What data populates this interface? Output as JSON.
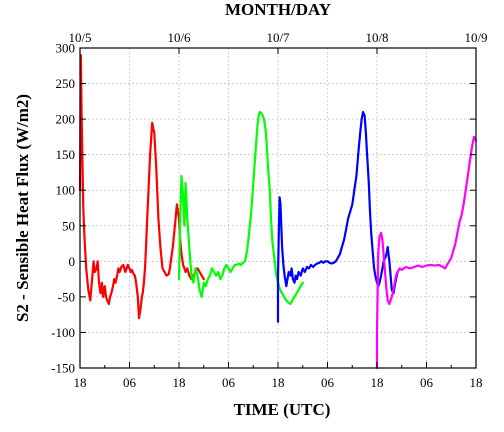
{
  "chart_data": {
    "type": "line",
    "title": "",
    "top_axis_title": "MONTH/DAY",
    "xlabel": "TIME (UTC)",
    "ylabel": "S2 - Sensible Heat Flux (W/m2)",
    "x_unit": "hours since 10/5 18 UTC",
    "xlim": [
      0,
      96
    ],
    "ylim": [
      -150,
      300
    ],
    "grid": true,
    "legend": "none",
    "bottom_ticks": [
      {
        "x": 0,
        "label": "18"
      },
      {
        "x": 12,
        "label": "06"
      },
      {
        "x": 24,
        "label": "18"
      },
      {
        "x": 36,
        "label": "06"
      },
      {
        "x": 48,
        "label": "18"
      },
      {
        "x": 60,
        "label": "06"
      },
      {
        "x": 72,
        "label": "18"
      },
      {
        "x": 84,
        "label": "06"
      },
      {
        "x": 96,
        "label": "18"
      }
    ],
    "top_ticks": [
      {
        "x": 0,
        "label": "10/5"
      },
      {
        "x": 24,
        "label": "10/6"
      },
      {
        "x": 48,
        "label": "10/7"
      },
      {
        "x": 72,
        "label": "10/8"
      },
      {
        "x": 96,
        "label": "10/9"
      }
    ],
    "y_ticks": [
      -150,
      -100,
      -50,
      0,
      50,
      100,
      150,
      200,
      250,
      300
    ],
    "series": [
      {
        "color": "#ff0000",
        "x": [
          0,
          0.2,
          0.4,
          0.6,
          0.8,
          1.0,
          1.2,
          1.5,
          2.0,
          2.5,
          3.0,
          3.3,
          3.6,
          4.0,
          4.3,
          4.6,
          5.0,
          5.3,
          5.6,
          6.0,
          6.3,
          6.6,
          7.0,
          7.3,
          7.6,
          8.0,
          8.3,
          8.6,
          9.0,
          9.3,
          9.6,
          10.0,
          10.5,
          11.0,
          11.3,
          11.6,
          12.0,
          12.3,
          12.6,
          13.0,
          13.3,
          13.6,
          14.0,
          14.3,
          14.6,
          15.0,
          15.2,
          15.5,
          15.8,
          16.0,
          16.3,
          16.6,
          17.0,
          17.5,
          18.0,
          18.5,
          19.0,
          19.5,
          20.0,
          20.5,
          21.0,
          21.5,
          21.8,
          22.0,
          22.5,
          23.0,
          23.5,
          24.0,
          24.3,
          24.6,
          25.0,
          25.3,
          25.6,
          26.0,
          26.5,
          27.0,
          27.5,
          28.0,
          28.5,
          29.0,
          29.5,
          30.0
        ],
        "y": [
          100,
          290,
          200,
          135,
          75,
          45,
          20,
          -10,
          -40,
          -55,
          -20,
          0,
          -15,
          -10,
          0,
          -30,
          -45,
          -30,
          -50,
          -35,
          -50,
          -55,
          -60,
          -50,
          -45,
          -35,
          -25,
          -30,
          -20,
          -10,
          -15,
          -8,
          -5,
          -15,
          -10,
          -5,
          -10,
          -15,
          -12,
          -18,
          -20,
          -30,
          -50,
          -80,
          -70,
          -50,
          -45,
          -30,
          -5,
          20,
          60,
          100,
          150,
          195,
          180,
          130,
          60,
          20,
          -10,
          -15,
          -20,
          -18,
          -10,
          0,
          20,
          50,
          80,
          60,
          30,
          10,
          -5,
          -10,
          -15,
          -10,
          -20,
          -25,
          -20,
          -15,
          -10,
          -15,
          -20,
          -25
        ]
      },
      {
        "color": "#00ff00",
        "x": [
          24.0,
          24.3,
          24.6,
          25.0,
          25.3,
          25.6,
          26.0,
          26.5,
          27.0,
          27.5,
          28.0,
          28.5,
          29.0,
          29.5,
          30.0,
          30.5,
          31.0,
          31.5,
          32.0,
          32.5,
          33.0,
          33.5,
          34.0,
          34.5,
          35.0,
          35.5,
          36.0,
          36.5,
          37.0,
          37.5,
          38.0,
          38.5,
          39.0,
          39.5,
          40.0,
          40.5,
          41.0,
          41.5,
          42.0,
          42.5,
          43.0,
          43.3,
          43.6,
          44.0,
          44.3,
          44.6,
          45.0,
          45.3,
          45.6,
          46.0,
          46.3,
          46.6,
          47.0,
          47.3,
          47.6,
          48.0,
          48.5,
          49.0,
          49.5,
          50.0,
          50.5,
          51.0,
          51.5,
          52.0,
          52.5,
          53.0,
          53.5,
          54.0
        ],
        "y": [
          -25,
          60,
          120,
          90,
          50,
          110,
          60,
          20,
          -20,
          -30,
          -10,
          -20,
          -40,
          -50,
          -30,
          -35,
          -25,
          -20,
          -10,
          -15,
          -20,
          -15,
          -25,
          -20,
          -10,
          -5,
          -10,
          -15,
          -10,
          -5,
          -5,
          -3,
          -5,
          -2,
          0,
          15,
          40,
          70,
          110,
          150,
          190,
          205,
          210,
          208,
          205,
          200,
          185,
          160,
          130,
          100,
          60,
          30,
          10,
          -5,
          -20,
          -30,
          -40,
          -45,
          -50,
          -55,
          -58,
          -60,
          -55,
          -50,
          -45,
          -40,
          -35,
          -30
        ]
      },
      {
        "color": "#0000ff",
        "x": [
          48.0,
          48.0,
          48.2,
          48.4,
          48.6,
          48.8,
          49.0,
          49.3,
          49.6,
          50.0,
          50.3,
          50.6,
          51.0,
          51.3,
          51.6,
          52.0,
          52.3,
          52.6,
          53.0,
          53.5,
          54.0,
          54.5,
          55.0,
          55.5,
          56.0,
          56.5,
          57.0,
          57.5,
          58.0,
          58.5,
          59.0,
          59.5,
          60.0,
          60.5,
          61.0,
          61.5,
          62.0,
          62.5,
          63.0,
          63.5,
          64.0,
          64.5,
          65.0,
          65.5,
          66.0,
          66.5,
          67.0,
          67.3,
          67.6,
          68.0,
          68.3,
          68.6,
          69.0,
          69.3,
          69.6,
          70.0,
          70.3,
          70.6,
          71.0,
          71.3,
          71.6,
          72.0,
          72.3,
          72.6,
          73.0,
          73.3,
          73.6,
          74.0,
          74.3,
          74.6,
          75.0,
          75.3,
          75.6,
          76.0,
          76.3,
          76.6,
          77.0
        ],
        "y": [
          -85,
          -20,
          40,
          90,
          80,
          50,
          20,
          -5,
          -20,
          -35,
          -25,
          -15,
          -20,
          -10,
          -25,
          -30,
          -20,
          -25,
          -15,
          -20,
          -10,
          -15,
          -8,
          -10,
          -5,
          -8,
          -5,
          -3,
          -2,
          0,
          -2,
          0,
          0,
          -2,
          -3,
          -2,
          0,
          5,
          10,
          20,
          30,
          45,
          60,
          70,
          80,
          100,
          120,
          140,
          160,
          185,
          200,
          210,
          205,
          180,
          150,
          110,
          70,
          40,
          10,
          -10,
          -20,
          -30,
          -35,
          -30,
          -20,
          -10,
          0,
          5,
          10,
          20,
          0,
          -20,
          -40,
          -45,
          -35,
          -25,
          -15
        ]
      },
      {
        "color": "#ff00ff",
        "x": [
          72.0,
          72.0,
          72.3,
          72.6,
          73.0,
          73.3,
          73.6,
          74.0,
          74.3,
          74.6,
          75.0,
          75.3,
          75.6,
          76.0,
          76.3,
          76.6,
          77.0,
          77.5,
          78.0,
          78.5,
          79.0,
          80.0,
          81.0,
          82.0,
          83.0,
          84.0,
          85.0,
          86.0,
          87.0,
          88.0,
          88.5,
          89.0,
          89.5,
          90.0,
          90.5,
          91.0,
          91.5,
          92.0,
          92.5,
          93.0,
          93.5,
          94.0,
          94.5,
          95.0,
          95.5,
          96.0
        ],
        "y": [
          -150,
          -100,
          10,
          35,
          40,
          30,
          10,
          -20,
          -40,
          -55,
          -60,
          -55,
          -50,
          -40,
          -30,
          -20,
          -15,
          -10,
          -12,
          -10,
          -8,
          -10,
          -8,
          -6,
          -8,
          -6,
          -5,
          -6,
          -5,
          -8,
          -10,
          -5,
          0,
          5,
          15,
          25,
          40,
          55,
          65,
          80,
          100,
          120,
          140,
          160,
          175,
          170
        ]
      }
    ]
  }
}
